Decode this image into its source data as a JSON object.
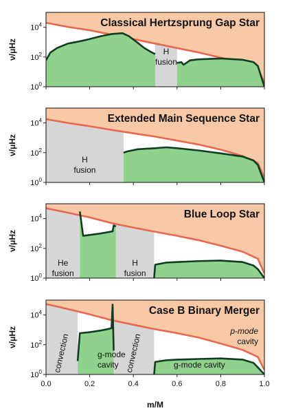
{
  "figure": {
    "xlabel": "m/M",
    "x_ticks": [
      "0.0",
      "0.2",
      "0.4",
      "0.6",
      "0.8",
      "1.0"
    ],
    "colors": {
      "p_mode": "#f8c9a6",
      "p_edge": "#e8674e",
      "g_mode": "#8fd18d",
      "g_edge": "#0f3d21",
      "region": "#d6d6d6"
    }
  },
  "chart_data": [
    {
      "type": "area",
      "title": "Classical Hertzsprung Gap Star",
      "ylabel": "ν/μHz",
      "y_scale": "log",
      "ylim": [
        1,
        100000
      ],
      "y_ticks": [
        "10^0",
        "10^2",
        "10^4"
      ],
      "xlim": [
        0,
        1
      ],
      "boundary_x": [
        0,
        0.1,
        0.2,
        0.3,
        0.4,
        0.5,
        0.6,
        0.7,
        0.8,
        0.9,
        0.97,
        1.0
      ],
      "boundary_y": [
        20000,
        10500,
        6300,
        3200,
        1600,
        800,
        400,
        200,
        90,
        40,
        15,
        2
      ],
      "g_regions": [
        {
          "x": [
            0,
            0.02,
            0.05,
            0.1,
            0.15,
            0.2,
            0.25,
            0.3,
            0.35,
            0.38,
            0.42,
            0.45,
            0.48,
            0.5
          ],
          "y": [
            60,
            200,
            400,
            800,
            1100,
            1600,
            2500,
            3500,
            4000,
            2500,
            900,
            400,
            220,
            160
          ]
        },
        {
          "x": [
            0.6,
            0.62,
            0.63,
            0.66,
            0.7,
            0.8,
            0.9,
            0.95,
            0.97,
            1.0
          ],
          "y": [
            40,
            45,
            30,
            60,
            70,
            80,
            65,
            45,
            25,
            1
          ]
        }
      ],
      "shaded_regions": [
        {
          "x": [
            0.5,
            0.6
          ],
          "label": [
            "H",
            "fusion"
          ]
        }
      ]
    },
    {
      "type": "area",
      "title": "Extended Main Sequence Star",
      "ylabel": "ν/μHz",
      "y_scale": "log",
      "ylim": [
        1,
        100000
      ],
      "y_ticks": [
        "10^0",
        "10^2",
        "10^4"
      ],
      "xlim": [
        0,
        1
      ],
      "boundary_x": [
        0,
        0.1,
        0.2,
        0.3,
        0.4,
        0.5,
        0.6,
        0.7,
        0.8,
        0.9,
        0.97,
        1.0
      ],
      "boundary_y": [
        18000,
        10000,
        6000,
        3400,
        2000,
        1200,
        650,
        350,
        160,
        60,
        20,
        2
      ],
      "g_regions": [
        {
          "x": [
            0.355,
            0.37,
            0.42,
            0.5,
            0.55,
            0.6,
            0.7,
            0.8,
            0.9,
            0.95,
            0.97,
            1.0
          ],
          "y": [
            100,
            120,
            170,
            200,
            230,
            200,
            140,
            90,
            55,
            30,
            15,
            1
          ]
        }
      ],
      "shaded_regions": [
        {
          "x": [
            0,
            0.355
          ],
          "label": [
            "H",
            "fusion"
          ]
        }
      ]
    },
    {
      "type": "area",
      "title": "Blue Loop Star",
      "ylabel": "ν/μHz",
      "y_scale": "log",
      "ylim": [
        1,
        100000
      ],
      "y_ticks": [
        "10^0",
        "10^2",
        "10^4"
      ],
      "xlim": [
        0,
        1
      ],
      "boundary_x": [
        0,
        0.1,
        0.2,
        0.3,
        0.4,
        0.5,
        0.6,
        0.7,
        0.8,
        0.9,
        0.97,
        1.0
      ],
      "boundary_y": [
        50000,
        25000,
        12000,
        5000,
        2500,
        1300,
        700,
        350,
        150,
        60,
        20,
        2
      ],
      "g_regions": [
        {
          "x": [
            0.155,
            0.17,
            0.2,
            0.25,
            0.28,
            0.305,
            0.31,
            0.32
          ],
          "y": [
            30000,
            700,
            800,
            1000,
            1200,
            1400,
            3500,
            3000
          ]
        },
        {
          "x": [
            0.495,
            0.5,
            0.55,
            0.6,
            0.7,
            0.8,
            0.9,
            0.95,
            0.97,
            1.0
          ],
          "y": [
            1,
            8,
            11,
            12,
            14,
            15,
            12,
            7,
            4,
            1
          ]
        }
      ],
      "shaded_regions": [
        {
          "x": [
            0,
            0.155
          ],
          "label": [
            "He",
            "fusion"
          ]
        },
        {
          "x": [
            0.32,
            0.495
          ],
          "label": [
            "H",
            "fusion"
          ]
        }
      ]
    },
    {
      "type": "area",
      "title": "Case B Binary Merger",
      "ylabel": "ν/μHz",
      "y_scale": "log",
      "ylim": [
        1,
        100000
      ],
      "y_ticks": [
        "10^0",
        "10^2",
        "10^4"
      ],
      "xlim": [
        0,
        1
      ],
      "boundary_x": [
        0,
        0.1,
        0.2,
        0.3,
        0.4,
        0.5,
        0.6,
        0.7,
        0.8,
        0.9,
        0.97,
        1.0
      ],
      "boundary_y": [
        55000,
        25000,
        11000,
        4500,
        2200,
        1100,
        600,
        300,
        120,
        45,
        15,
        2
      ],
      "g_regions": [
        {
          "x": [
            0.145,
            0.155,
            0.2,
            0.25,
            0.28,
            0.3,
            0.305,
            0.31
          ],
          "y": [
            8,
            600,
            700,
            900,
            1100,
            1300,
            50000,
            40
          ]
        },
        {
          "x": [
            0.495,
            0.5,
            0.55,
            0.6,
            0.7,
            0.8,
            0.9,
            0.95,
            0.97,
            1.0
          ],
          "y": [
            1,
            7,
            9,
            10,
            11,
            12,
            10,
            6,
            3,
            1
          ]
        }
      ],
      "shaded_regions": [
        {
          "x": [
            0,
            0.145
          ],
          "label": [
            "convection"
          ],
          "rotated": true
        },
        {
          "x": [
            0.31,
            0.495
          ],
          "label": [
            "convection"
          ],
          "rotated": true
        }
      ],
      "annotations": {
        "p_mode": [
          "p-mode",
          "cavity"
        ],
        "g_mode_inner": [
          "g-mode",
          "cavity"
        ],
        "g_mode_outer": "g-mode cavity"
      }
    }
  ]
}
